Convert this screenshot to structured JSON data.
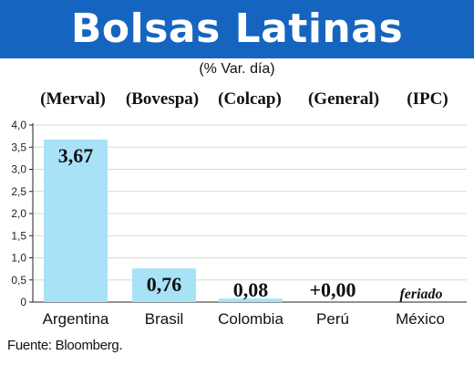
{
  "title": "Bolsas Latinas",
  "subtitle": "(% Var. día)",
  "source": "Fuente: Bloomberg.",
  "colors": {
    "banner": "#1565c0",
    "bar": "#a8e2f7",
    "grid": "#d8d8d8",
    "axis": "#222222"
  },
  "chart_data": {
    "type": "bar",
    "title": "Bolsas Latinas",
    "subtitle": "(% Var. día)",
    "categories": [
      "Argentina",
      "Brasil",
      "Colombia",
      "Perú",
      "México"
    ],
    "indices": [
      "(Merval)",
      "(Bovespa)",
      "(Colcap)",
      "(General)",
      "(IPC)"
    ],
    "values": [
      3.67,
      0.76,
      0.08,
      0.0,
      null
    ],
    "data_labels": [
      "3,67",
      "0,76",
      "0,08",
      "+0,00",
      "feriado"
    ],
    "ylim": [
      0,
      4.0
    ],
    "yticks": [
      "0",
      "0,5",
      "1,0",
      "1,5",
      "2,0",
      "2,5",
      "3,0",
      "3,5",
      "4,0"
    ],
    "grid": true,
    "legend": "none"
  }
}
